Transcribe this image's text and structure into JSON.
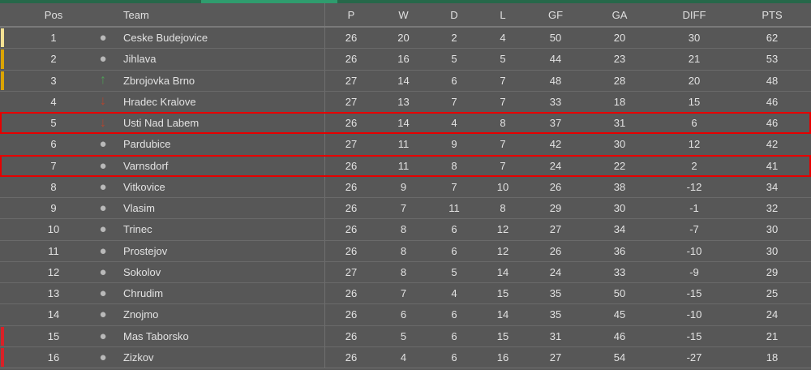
{
  "header": {
    "pos": "Pos",
    "team": "Team",
    "p": "P",
    "w": "W",
    "d": "D",
    "l": "L",
    "gf": "GF",
    "ga": "GA",
    "diff": "DIFF",
    "pts": "PTS"
  },
  "colors": {
    "top_bar_dark_green": "#27684a",
    "top_bar_light_green": "#2f9c6e",
    "row_background": "#575757",
    "header_background": "#595959",
    "text": "#e2e2e2",
    "promotion_marker_gold": "#dba403",
    "leader_marker_gold_light": "#f3e193",
    "relegation_marker_red": "#d92027",
    "highlight_border_red": "#e60000",
    "up_arrow_green": "#4f9e57",
    "down_arrow_red": "#b5452e",
    "steady_circle_gray": "#b9b9b9"
  },
  "rows": [
    {
      "pos": "1",
      "icon": "circle",
      "team": "Ceske Budejovice",
      "p": "26",
      "w": "20",
      "d": "2",
      "l": "4",
      "gf": "50",
      "ga": "20",
      "diff": "30",
      "pts": "62",
      "accent": "gold-light"
    },
    {
      "pos": "2",
      "icon": "circle",
      "team": "Jihlava",
      "p": "26",
      "w": "16",
      "d": "5",
      "l": "5",
      "gf": "44",
      "ga": "23",
      "diff": "21",
      "pts": "53",
      "accent": "gold"
    },
    {
      "pos": "3",
      "icon": "up",
      "team": "Zbrojovka Brno",
      "p": "27",
      "w": "14",
      "d": "6",
      "l": "7",
      "gf": "48",
      "ga": "28",
      "diff": "20",
      "pts": "48",
      "accent": "gold"
    },
    {
      "pos": "4",
      "icon": "down",
      "team": "Hradec Kralove",
      "p": "27",
      "w": "13",
      "d": "7",
      "l": "7",
      "gf": "33",
      "ga": "18",
      "diff": "15",
      "pts": "46"
    },
    {
      "pos": "5",
      "icon": "down",
      "team": "Usti Nad Labem",
      "p": "26",
      "w": "14",
      "d": "4",
      "l": "8",
      "gf": "37",
      "ga": "31",
      "diff": "6",
      "pts": "46",
      "highlight": "true"
    },
    {
      "pos": "6",
      "icon": "circle",
      "team": "Pardubice",
      "p": "27",
      "w": "11",
      "d": "9",
      "l": "7",
      "gf": "42",
      "ga": "30",
      "diff": "12",
      "pts": "42"
    },
    {
      "pos": "7",
      "icon": "circle",
      "team": "Varnsdorf",
      "p": "26",
      "w": "11",
      "d": "8",
      "l": "7",
      "gf": "24",
      "ga": "22",
      "diff": "2",
      "pts": "41",
      "highlight": "true"
    },
    {
      "pos": "8",
      "icon": "circle",
      "team": "Vitkovice",
      "p": "26",
      "w": "9",
      "d": "7",
      "l": "10",
      "gf": "26",
      "ga": "38",
      "diff": "-12",
      "pts": "34"
    },
    {
      "pos": "9",
      "icon": "circle",
      "team": "Vlasim",
      "p": "26",
      "w": "7",
      "d": "11",
      "l": "8",
      "gf": "29",
      "ga": "30",
      "diff": "-1",
      "pts": "32"
    },
    {
      "pos": "10",
      "icon": "circle",
      "team": "Trinec",
      "p": "26",
      "w": "8",
      "d": "6",
      "l": "12",
      "gf": "27",
      "ga": "34",
      "diff": "-7",
      "pts": "30"
    },
    {
      "pos": "11",
      "icon": "circle",
      "team": "Prostejov",
      "p": "26",
      "w": "8",
      "d": "6",
      "l": "12",
      "gf": "26",
      "ga": "36",
      "diff": "-10",
      "pts": "30"
    },
    {
      "pos": "12",
      "icon": "circle",
      "team": "Sokolov",
      "p": "27",
      "w": "8",
      "d": "5",
      "l": "14",
      "gf": "24",
      "ga": "33",
      "diff": "-9",
      "pts": "29"
    },
    {
      "pos": "13",
      "icon": "circle",
      "team": "Chrudim",
      "p": "26",
      "w": "7",
      "d": "4",
      "l": "15",
      "gf": "35",
      "ga": "50",
      "diff": "-15",
      "pts": "25"
    },
    {
      "pos": "14",
      "icon": "circle",
      "team": "Znojmo",
      "p": "26",
      "w": "6",
      "d": "6",
      "l": "14",
      "gf": "35",
      "ga": "45",
      "diff": "-10",
      "pts": "24"
    },
    {
      "pos": "15",
      "icon": "circle",
      "team": "Mas Taborsko",
      "p": "26",
      "w": "5",
      "d": "6",
      "l": "15",
      "gf": "31",
      "ga": "46",
      "diff": "-15",
      "pts": "21",
      "accent": "red"
    },
    {
      "pos": "16",
      "icon": "circle",
      "team": "Zizkov",
      "p": "26",
      "w": "4",
      "d": "6",
      "l": "16",
      "gf": "27",
      "ga": "54",
      "diff": "-27",
      "pts": "18",
      "accent": "red"
    }
  ]
}
